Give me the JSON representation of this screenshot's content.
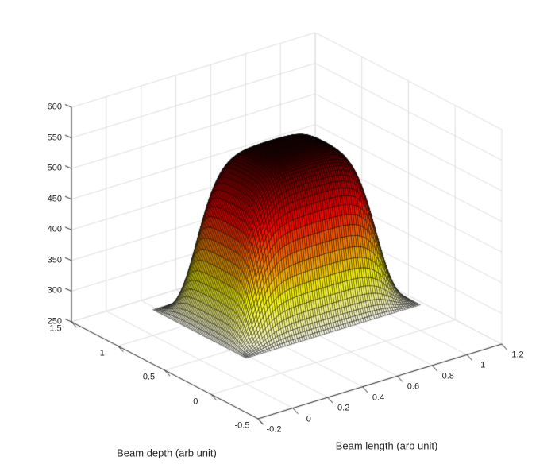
{
  "chart_data": {
    "type": "surface",
    "title": "",
    "xlabel": "Beam length (arb unit)",
    "ylabel": "Beam depth (arb unit)",
    "zlabel": "",
    "xlim": [
      -0.2,
      1.2
    ],
    "ylim": [
      -0.5,
      1.5
    ],
    "zlim": [
      250,
      600
    ],
    "x_ticks": [
      -0.2,
      0,
      0.2,
      0.4,
      0.6,
      0.8,
      1,
      1.2
    ],
    "x_tick_labels": [
      "-0.2",
      "0",
      "0.2",
      "0.4",
      "0.6",
      "0.8",
      "1",
      "1.2"
    ],
    "y_ticks": [
      -0.5,
      0,
      0.5,
      1,
      1.5
    ],
    "y_tick_labels": [
      "-0.5",
      "0",
      "0.5",
      "1",
      "1.5"
    ],
    "z_ticks": [
      250,
      300,
      350,
      400,
      450,
      500,
      550,
      600
    ],
    "z_tick_labels": [
      "250",
      "300",
      "350",
      "400",
      "450",
      "500",
      "550",
      "600"
    ],
    "grid": true,
    "legend": "none",
    "view": {
      "azimuth_deg": -37.5,
      "elevation_deg": 30,
      "projection": "orthographic"
    },
    "colormap": "hot-reversed (high z = black/dark red, mid = red/orange/yellow, low z = white)",
    "color_limits": [
      290,
      575
    ],
    "surface": {
      "x_domain": [
        0,
        1
      ],
      "y_domain": [
        0,
        1
      ],
      "z_base": 292,
      "z_peak": 555,
      "model": "z(x,y) = z_base + (z_peak - z_base) * g(x) * g(y); g(t) = (L(t)*L(1-t) - L(0)*L(1)) / (L(0.5)^2 - L(0)*L(1)); L(t) = 1/(1+exp(-(t-edge_center)/edge_sharpness)) — flat plateau at z_peak with steep sigmoid walls dropping to z_base at the domain edges",
      "edge_center": 0.13,
      "edge_sharpness": 0.05,
      "mesh_cells": 80,
      "mesh_line_color": "#000000",
      "center_profile_x": [
        0,
        0.05,
        0.1,
        0.15,
        0.2,
        0.25,
        0.3,
        0.35,
        0.4,
        0.45,
        0.5,
        0.55,
        0.6,
        0.65,
        0.7,
        0.75,
        0.8,
        0.85,
        0.9,
        0.95,
        1
      ],
      "center_profile_z": [
        292,
        320,
        373,
        442,
        499,
        532,
        546,
        552,
        554,
        555,
        555,
        555,
        554,
        552,
        546,
        532,
        499,
        442,
        373,
        320,
        292
      ]
    },
    "colors": {
      "background": "#ffffff",
      "grid_line": "#dedede",
      "axis_line": "#262626",
      "tick_label": "#262626",
      "axis_label": "#262626"
    }
  }
}
